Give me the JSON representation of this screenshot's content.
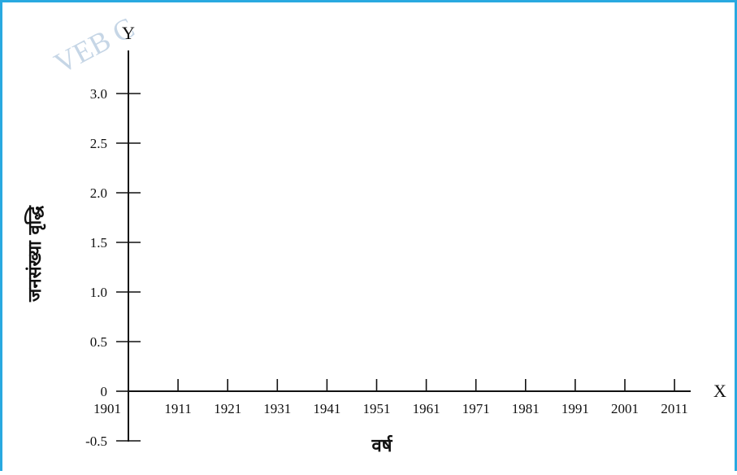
{
  "watermark": "VEB C",
  "chart_data": {
    "type": "line",
    "title": "",
    "x_axis_letter": "X",
    "y_axis_letter": "Y",
    "xlabel": "वर्ष",
    "ylabel": "जनसंख्या वृद्धि",
    "x": [
      "1901",
      "1911",
      "1921",
      "1931",
      "1941",
      "1951",
      "1961",
      "1971",
      "1981",
      "1991",
      "2001",
      "2011"
    ],
    "y_ticks": [
      "-0.5",
      "0",
      "0.5",
      "1.0",
      "1.5",
      "2.0",
      "2.5",
      "3.0"
    ],
    "y_tick_values": [
      -0.5,
      0,
      0.5,
      1.0,
      1.5,
      2.0,
      2.5,
      3.0
    ],
    "ylim": [
      -0.5,
      3.0
    ],
    "series": [],
    "grid": false
  }
}
